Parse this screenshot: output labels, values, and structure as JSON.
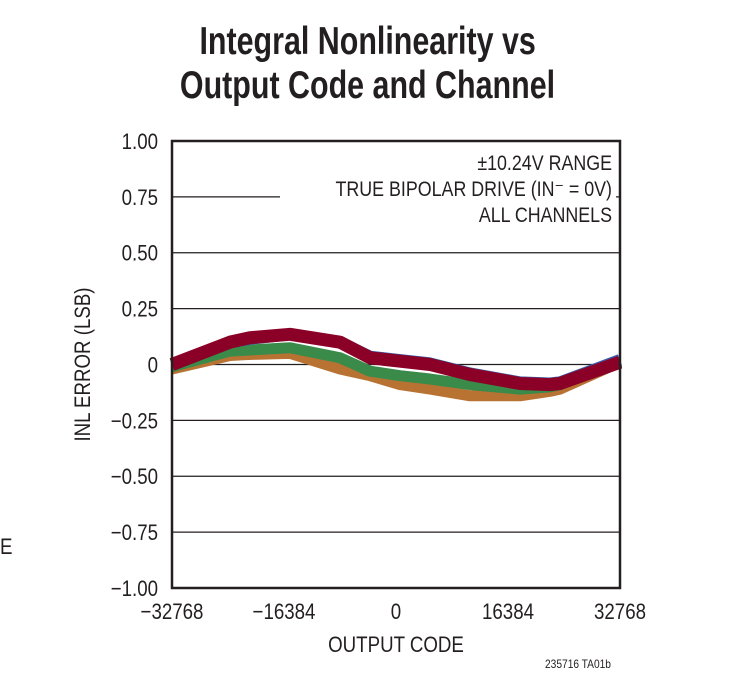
{
  "chart_data": {
    "type": "line",
    "title_line1": "Integral Nonlinearity vs",
    "title_line2": "Output Code and Channel",
    "xlabel": "OUTPUT CODE",
    "ylabel": "INL ERROR (LSB)",
    "xlim": [
      -32768,
      32768
    ],
    "ylim": [
      -1.0,
      1.0
    ],
    "xticks": [
      "−32768",
      "−16384",
      "0",
      "16384",
      "32768"
    ],
    "xtick_values": [
      -32768,
      -16384,
      0,
      16384,
      32768
    ],
    "yticks": [
      "1.00",
      "0.75",
      "0.50",
      "0.25",
      "0",
      "−0.25",
      "−0.50",
      "−0.75",
      "−1.00"
    ],
    "ytick_values": [
      1.0,
      0.75,
      0.5,
      0.25,
      0,
      -0.25,
      -0.5,
      -0.75,
      -1.0
    ],
    "grid": true,
    "annotations": [
      "±10.24V RANGE",
      "TRUE BIPOLAR DRIVE (IN⁻ = 0V)",
      "ALL CHANNELS"
    ],
    "x": [
      -32768,
      -24283,
      -21358,
      -15506,
      -8193,
      -3804,
      585,
      4974,
      10826,
      18140,
      22529,
      23992,
      32768
    ],
    "series": [
      {
        "color": "#b87333",
        "values": [
          -0.02,
          0.04,
          0.045,
          0.05,
          -0.02,
          -0.05,
          -0.09,
          -0.11,
          -0.14,
          -0.14,
          -0.12,
          -0.11,
          0.01
        ]
      },
      {
        "color": "#3a8a4a",
        "values": [
          -0.01,
          0.06,
          0.065,
          0.075,
          0.03,
          -0.03,
          -0.05,
          -0.065,
          -0.09,
          -0.11,
          -0.1,
          -0.09,
          0.015
        ]
      },
      {
        "color": "#3a5ba8",
        "values": [
          0.0,
          0.1,
          0.115,
          0.135,
          0.1,
          0.035,
          0.02,
          0.005,
          -0.04,
          -0.08,
          -0.085,
          -0.08,
          0.02
        ]
      },
      {
        "color": "#8b0026",
        "values": [
          0.0,
          0.1,
          0.12,
          0.135,
          0.1,
          0.03,
          0.015,
          0.0,
          -0.045,
          -0.085,
          -0.09,
          -0.085,
          0.01
        ]
      }
    ]
  },
  "stray_text": "E",
  "figure_code": "235716 TA01b"
}
